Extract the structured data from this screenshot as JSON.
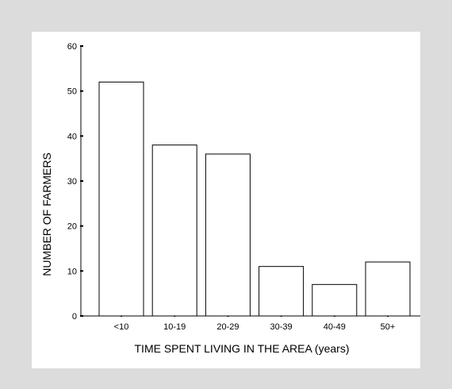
{
  "chart_data": {
    "type": "bar",
    "categories": [
      "<10",
      "10-19",
      "20-29",
      "30-39",
      "40-49",
      "50+"
    ],
    "values": [
      52,
      38,
      36,
      11,
      7,
      12
    ],
    "title": "",
    "xlabel": "TIME SPENT LIVING IN THE AREA (years)",
    "ylabel": "NUMBER OF FARMERS",
    "ylim": [
      0,
      60
    ],
    "yticks": [
      "0",
      "10",
      "20",
      "30",
      "40",
      "50",
      "60"
    ],
    "grid": false,
    "colors": {
      "bar_fill": "#ffffff",
      "bar_stroke": "#000000",
      "background": "#dcdcdc",
      "panel": "#ffffff"
    }
  }
}
